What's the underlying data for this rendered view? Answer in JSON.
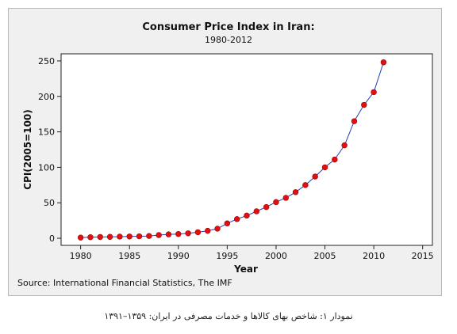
{
  "chart_data": {
    "type": "line",
    "title": "Consumer Price Index in Iran:",
    "subtitle": "1980-2012",
    "xlabel": "Year",
    "ylabel": "CPI(2005=100)",
    "xlim": [
      1978,
      2016
    ],
    "ylim": [
      -10,
      260
    ],
    "xticks": [
      1980,
      1985,
      1990,
      1995,
      2000,
      2005,
      2010,
      2015
    ],
    "yticks": [
      0,
      50,
      100,
      150,
      200,
      250
    ],
    "grid": false,
    "series": [
      {
        "x": [
          1980,
          1981,
          1982,
          1983,
          1984,
          1985,
          1986,
          1987,
          1988,
          1989,
          1990,
          1991,
          1992,
          1993,
          1994,
          1995,
          1996,
          1997,
          1998,
          1999,
          2000,
          2001,
          2002,
          2003,
          2004,
          2005,
          2006,
          2007,
          2008,
          2009,
          2010,
          2011
        ],
        "values": [
          1,
          1.5,
          1.8,
          2,
          2.3,
          2.5,
          2.8,
          3.2,
          4.5,
          5.5,
          6,
          7,
          8.5,
          10.5,
          13.5,
          21,
          27,
          32,
          38,
          44,
          51,
          57,
          65,
          75,
          87,
          100,
          111,
          131,
          165,
          188,
          206,
          248
        ],
        "line_color": "#1f3fbf",
        "marker_color": "#e01010"
      }
    ],
    "source": "Source: International Financial Statistics, The IMF"
  },
  "caption": "نمودار ۱: شاخص بهای کالاها و خدمات مصرفی در ایران: ۱۳۵۹–۱۳۹۱"
}
